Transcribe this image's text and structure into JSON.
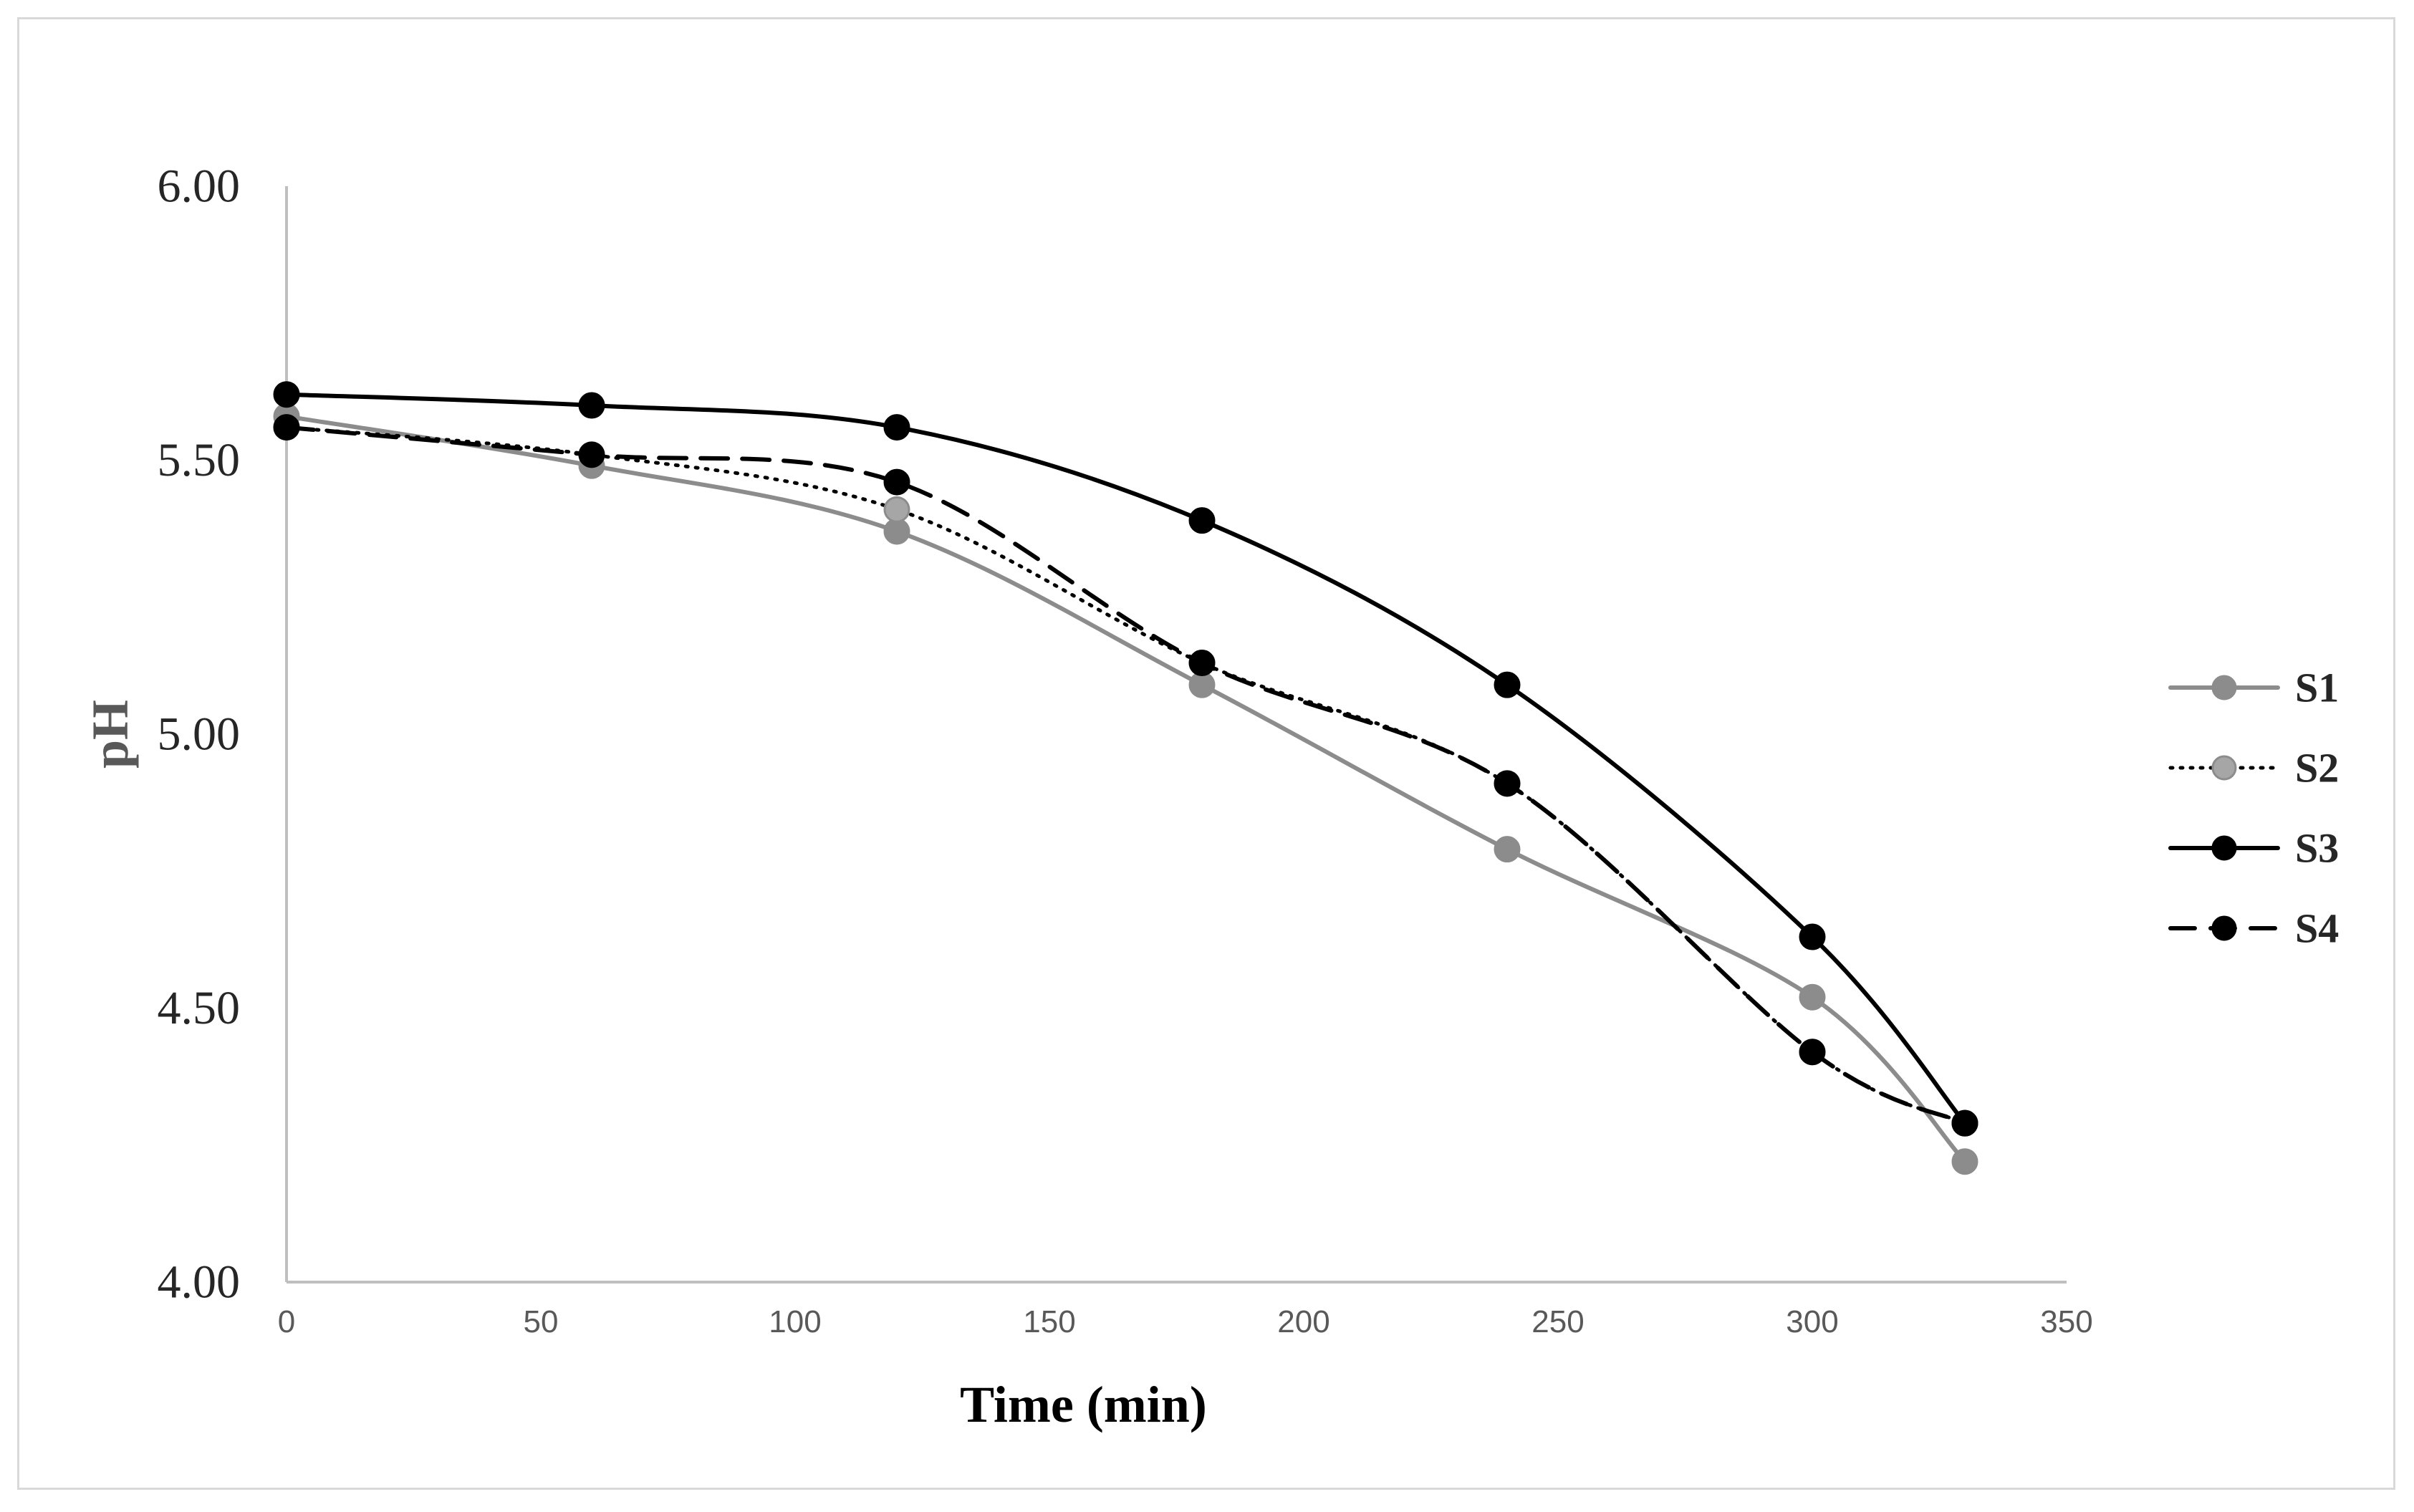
{
  "chart_data": {
    "type": "line",
    "title": "",
    "xlabel": "Time (min)",
    "ylabel": "pH",
    "xlim": [
      0,
      350
    ],
    "ylim": [
      4.0,
      6.0
    ],
    "x_ticks": [
      0,
      50,
      100,
      150,
      200,
      250,
      300,
      350
    ],
    "x_tick_labels": [
      "0",
      "50",
      "100",
      "150",
      "200",
      "250",
      "300",
      "350"
    ],
    "y_ticks": [
      4.0,
      4.5,
      5.0,
      5.5,
      6.0
    ],
    "y_tick_labels": [
      "4.00",
      "4.50",
      "5.00",
      "5.50",
      "6.00"
    ],
    "grid": false,
    "legend_position": "right",
    "colors": {
      "axis": "#bfbfbf",
      "xlabel": "#000000",
      "ylabel": "#595959",
      "s1": "#8c8c8c",
      "s2_marker": "#a6a6a6",
      "dark": "#000000"
    },
    "series": [
      {
        "name": "S1",
        "x": [
          0,
          60,
          120,
          180,
          240,
          300,
          330
        ],
        "values": [
          5.58,
          5.49,
          5.37,
          5.09,
          4.79,
          4.52,
          4.22
        ],
        "line_style": "solid",
        "color": "#8c8c8c",
        "marker_color": "#8c8c8c"
      },
      {
        "name": "S2",
        "x": [
          0,
          60,
          120,
          180,
          240,
          300,
          330
        ],
        "values": [
          5.56,
          5.51,
          5.41,
          5.13,
          4.91,
          4.42,
          4.29
        ],
        "line_style": "dotted",
        "color": "#000000",
        "marker_color": "#a6a6a6"
      },
      {
        "name": "S3",
        "x": [
          0,
          60,
          120,
          180,
          240,
          300,
          330
        ],
        "values": [
          5.62,
          5.6,
          5.56,
          5.39,
          5.09,
          4.63,
          4.29
        ],
        "line_style": "solid",
        "color": "#000000",
        "marker_color": "#000000"
      },
      {
        "name": "S4",
        "x": [
          0,
          60,
          120,
          180,
          240,
          300,
          330
        ],
        "values": [
          5.56,
          5.51,
          5.46,
          5.13,
          4.91,
          4.42,
          4.29
        ],
        "line_style": "dashed",
        "color": "#000000",
        "marker_color": "#000000"
      }
    ]
  }
}
